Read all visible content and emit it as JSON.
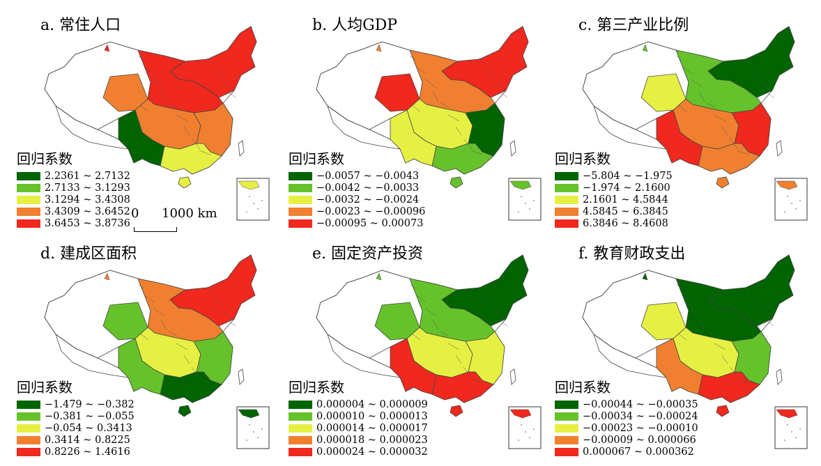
{
  "legend_title": "回归系数",
  "colors": [
    "#006400",
    "#66c22a",
    "#e6f043",
    "#f08030",
    "#f0281e"
  ],
  "panels": [
    {
      "title": "a. 常住人口",
      "legend": [
        "2.2361 ~ 2.7132",
        "2.7133 ~ 3.1293",
        "3.1294 ~ 3.4308",
        "3.4309 ~ 3.6452",
        "3.6453 ~ 3.8736"
      ],
      "regions": {
        "ne": 4,
        "n": 4,
        "central": 3,
        "east": 3,
        "se": 2,
        "sw": 0,
        "nw": 3
      }
    },
    {
      "title": "b. 人均GDP",
      "legend": [
        "−0.0057 ~ −0.0043",
        "−0.0042 ~ −0.0033",
        "−0.0032 ~ −0.0024",
        "−0.0023 ~ −0.00096",
        "−0.00095 ~ 0.00073"
      ],
      "regions": {
        "ne": 4,
        "n": 3,
        "central": 2,
        "east": 0,
        "se": 1,
        "sw": 2,
        "nw": 4
      }
    },
    {
      "title": "c. 第三产业比例",
      "legend": [
        "−5.804 ~ −1.975",
        "−1.974 ~ 2.1600",
        "2.1601 ~ 4.5844",
        "4.5845 ~ 6.3845",
        "6.3846 ~ 8.4608"
      ],
      "regions": {
        "ne": 0,
        "n": 1,
        "central": 3,
        "east": 4,
        "se": 3,
        "sw": 4,
        "nw": 2
      }
    },
    {
      "title": "d. 建成区面积",
      "legend": [
        "−1.479 ~ −0.382",
        "−0.381 ~ −0.055",
        "−0.054 ~ 0.3413",
        "0.3414 ~ 0.8225",
        "0.8226 ~ 1.4616"
      ],
      "regions": {
        "ne": 4,
        "n": 3,
        "central": 2,
        "east": 1,
        "se": 0,
        "sw": 1,
        "nw": 1
      }
    },
    {
      "title": "e. 固定资产投资",
      "legend": [
        "0.000004 ~ 0.000009",
        "0.000010 ~ 0.000013",
        "0.000014 ~ 0.000017",
        "0.000018 ~ 0.000023",
        "0.000024 ~ 0.000032"
      ],
      "regions": {
        "ne": 0,
        "n": 1,
        "central": 2,
        "east": 2,
        "se": 4,
        "sw": 4,
        "nw": 1
      }
    },
    {
      "title": "f. 教育财政支出",
      "legend": [
        "−0.00044 ~ −0.00035",
        "−0.00034 ~ −0.00024",
        "−0.00023 ~ −0.00010",
        "−0.00009 ~ 0.000066",
        "0.000067 ~ 0.000362"
      ],
      "regions": {
        "ne": 0,
        "n": 0,
        "central": 2,
        "east": 1,
        "se": 4,
        "sw": 3,
        "nw": 2
      }
    }
  ],
  "scalebar": {
    "zero": "0",
    "distance": "1000 km"
  }
}
